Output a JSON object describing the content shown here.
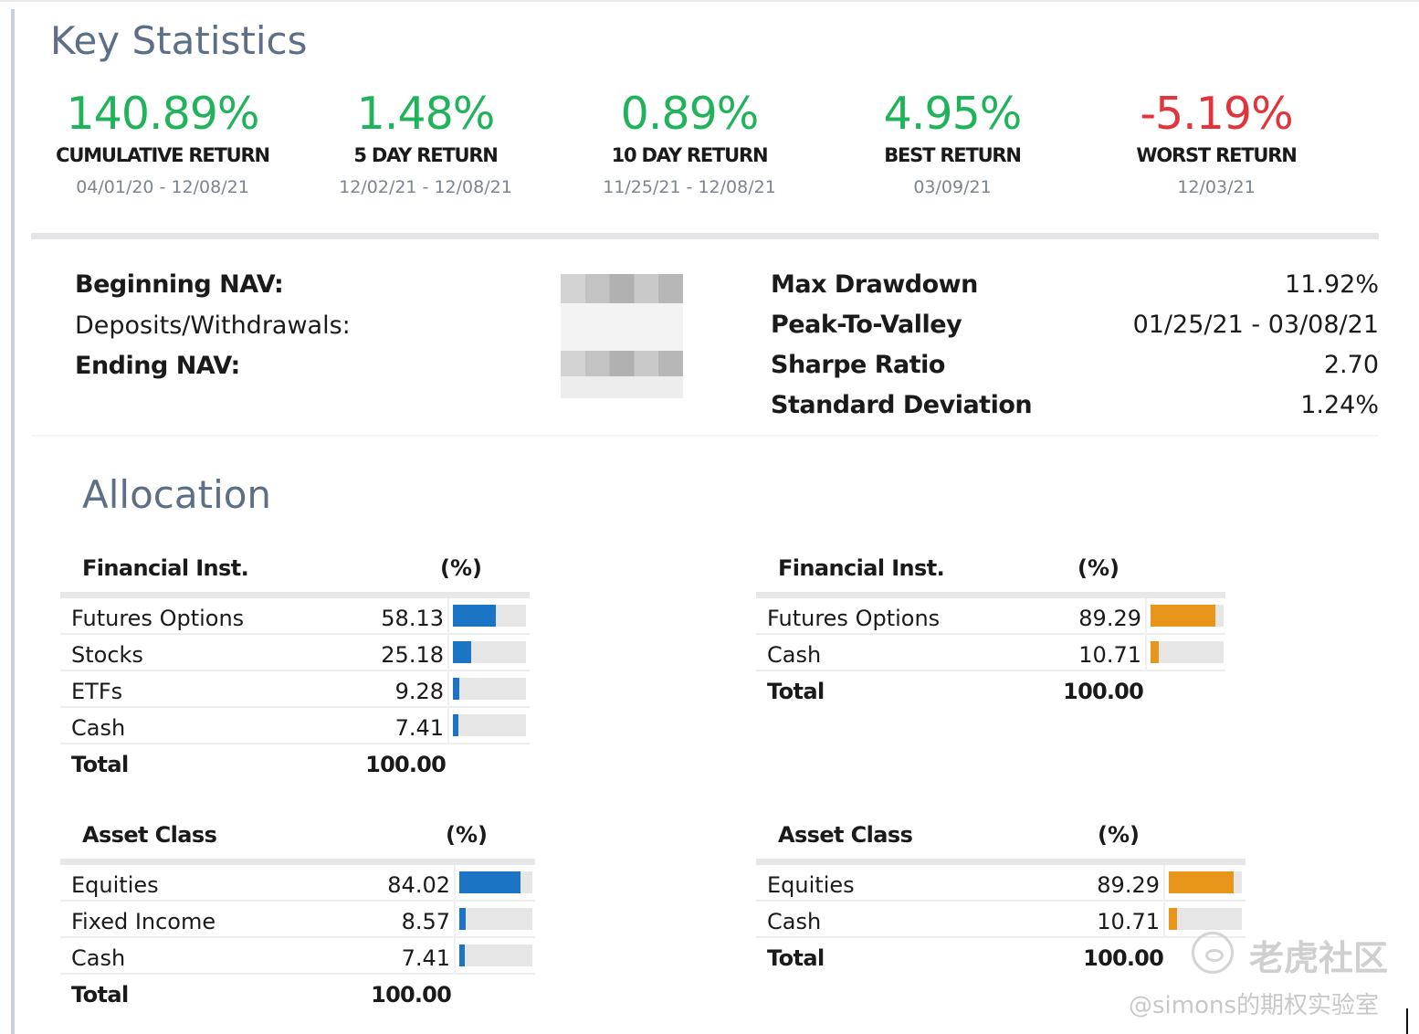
{
  "key_statistics": {
    "title": "Key Statistics",
    "stats": [
      {
        "value": "140.89%",
        "label": "CUMULATIVE RETURN",
        "date": "04/01/20 - 12/08/21",
        "tone": "positive"
      },
      {
        "value": "1.48%",
        "label": "5 DAY RETURN",
        "date": "12/02/21 - 12/08/21",
        "tone": "positive"
      },
      {
        "value": "0.89%",
        "label": "10 DAY RETURN",
        "date": "11/25/21 - 12/08/21",
        "tone": "positive"
      },
      {
        "value": "4.95%",
        "label": "BEST RETURN",
        "date": "03/09/21",
        "tone": "positive"
      },
      {
        "value": "-5.19%",
        "label": "WORST RETURN",
        "date": "12/03/21",
        "tone": "negative"
      }
    ],
    "nav": {
      "beginning": "Beginning NAV:",
      "deposits": "Deposits/Withdrawals:",
      "ending": "Ending NAV:"
    },
    "metrics": [
      {
        "label": "Max Drawdown",
        "value": "11.92%"
      },
      {
        "label": "Peak-To-Valley",
        "value": "01/25/21 - 03/08/21"
      },
      {
        "label": "Sharpe Ratio",
        "value": "2.70"
      },
      {
        "label": "Standard Deviation",
        "value": "1.24%"
      }
    ]
  },
  "allocation": {
    "title": "Allocation",
    "tables": {
      "fin_left": {
        "header": "Financial Inst.",
        "pct_header": "(%)",
        "rows": [
          {
            "name": "Futures Options",
            "pct": "58.13",
            "value": 58.13
          },
          {
            "name": "Stocks",
            "pct": "25.18",
            "value": 25.18
          },
          {
            "name": "ETFs",
            "pct": "9.28",
            "value": 9.28
          },
          {
            "name": "Cash",
            "pct": "7.41",
            "value": 7.41
          }
        ],
        "total_label": "Total",
        "total": "100.00",
        "color": "#1b75c4"
      },
      "fin_right": {
        "header": "Financial Inst.",
        "pct_header": "(%)",
        "rows": [
          {
            "name": "Futures Options",
            "pct": "89.29",
            "value": 89.29
          },
          {
            "name": "Cash",
            "pct": "10.71",
            "value": 10.71
          }
        ],
        "total_label": "Total",
        "total": "100.00",
        "color": "#e8951c"
      },
      "asset_left": {
        "header": "Asset Class",
        "pct_header": "(%)",
        "rows": [
          {
            "name": "Equities",
            "pct": "84.02",
            "value": 84.02
          },
          {
            "name": "Fixed Income",
            "pct": "8.57",
            "value": 8.57
          },
          {
            "name": "Cash",
            "pct": "7.41",
            "value": 7.41
          }
        ],
        "total_label": "Total",
        "total": "100.00",
        "color": "#1b75c4"
      },
      "asset_right": {
        "header": "Asset Class",
        "pct_header": "(%)",
        "rows": [
          {
            "name": "Equities",
            "pct": "89.29",
            "value": 89.29
          },
          {
            "name": "Cash",
            "pct": "10.71",
            "value": 10.71
          }
        ],
        "total_label": "Total",
        "total": "100.00",
        "color": "#e8951c"
      }
    }
  },
  "watermark": {
    "brand": "老虎社区",
    "user": "@simons的期权实验室"
  }
}
